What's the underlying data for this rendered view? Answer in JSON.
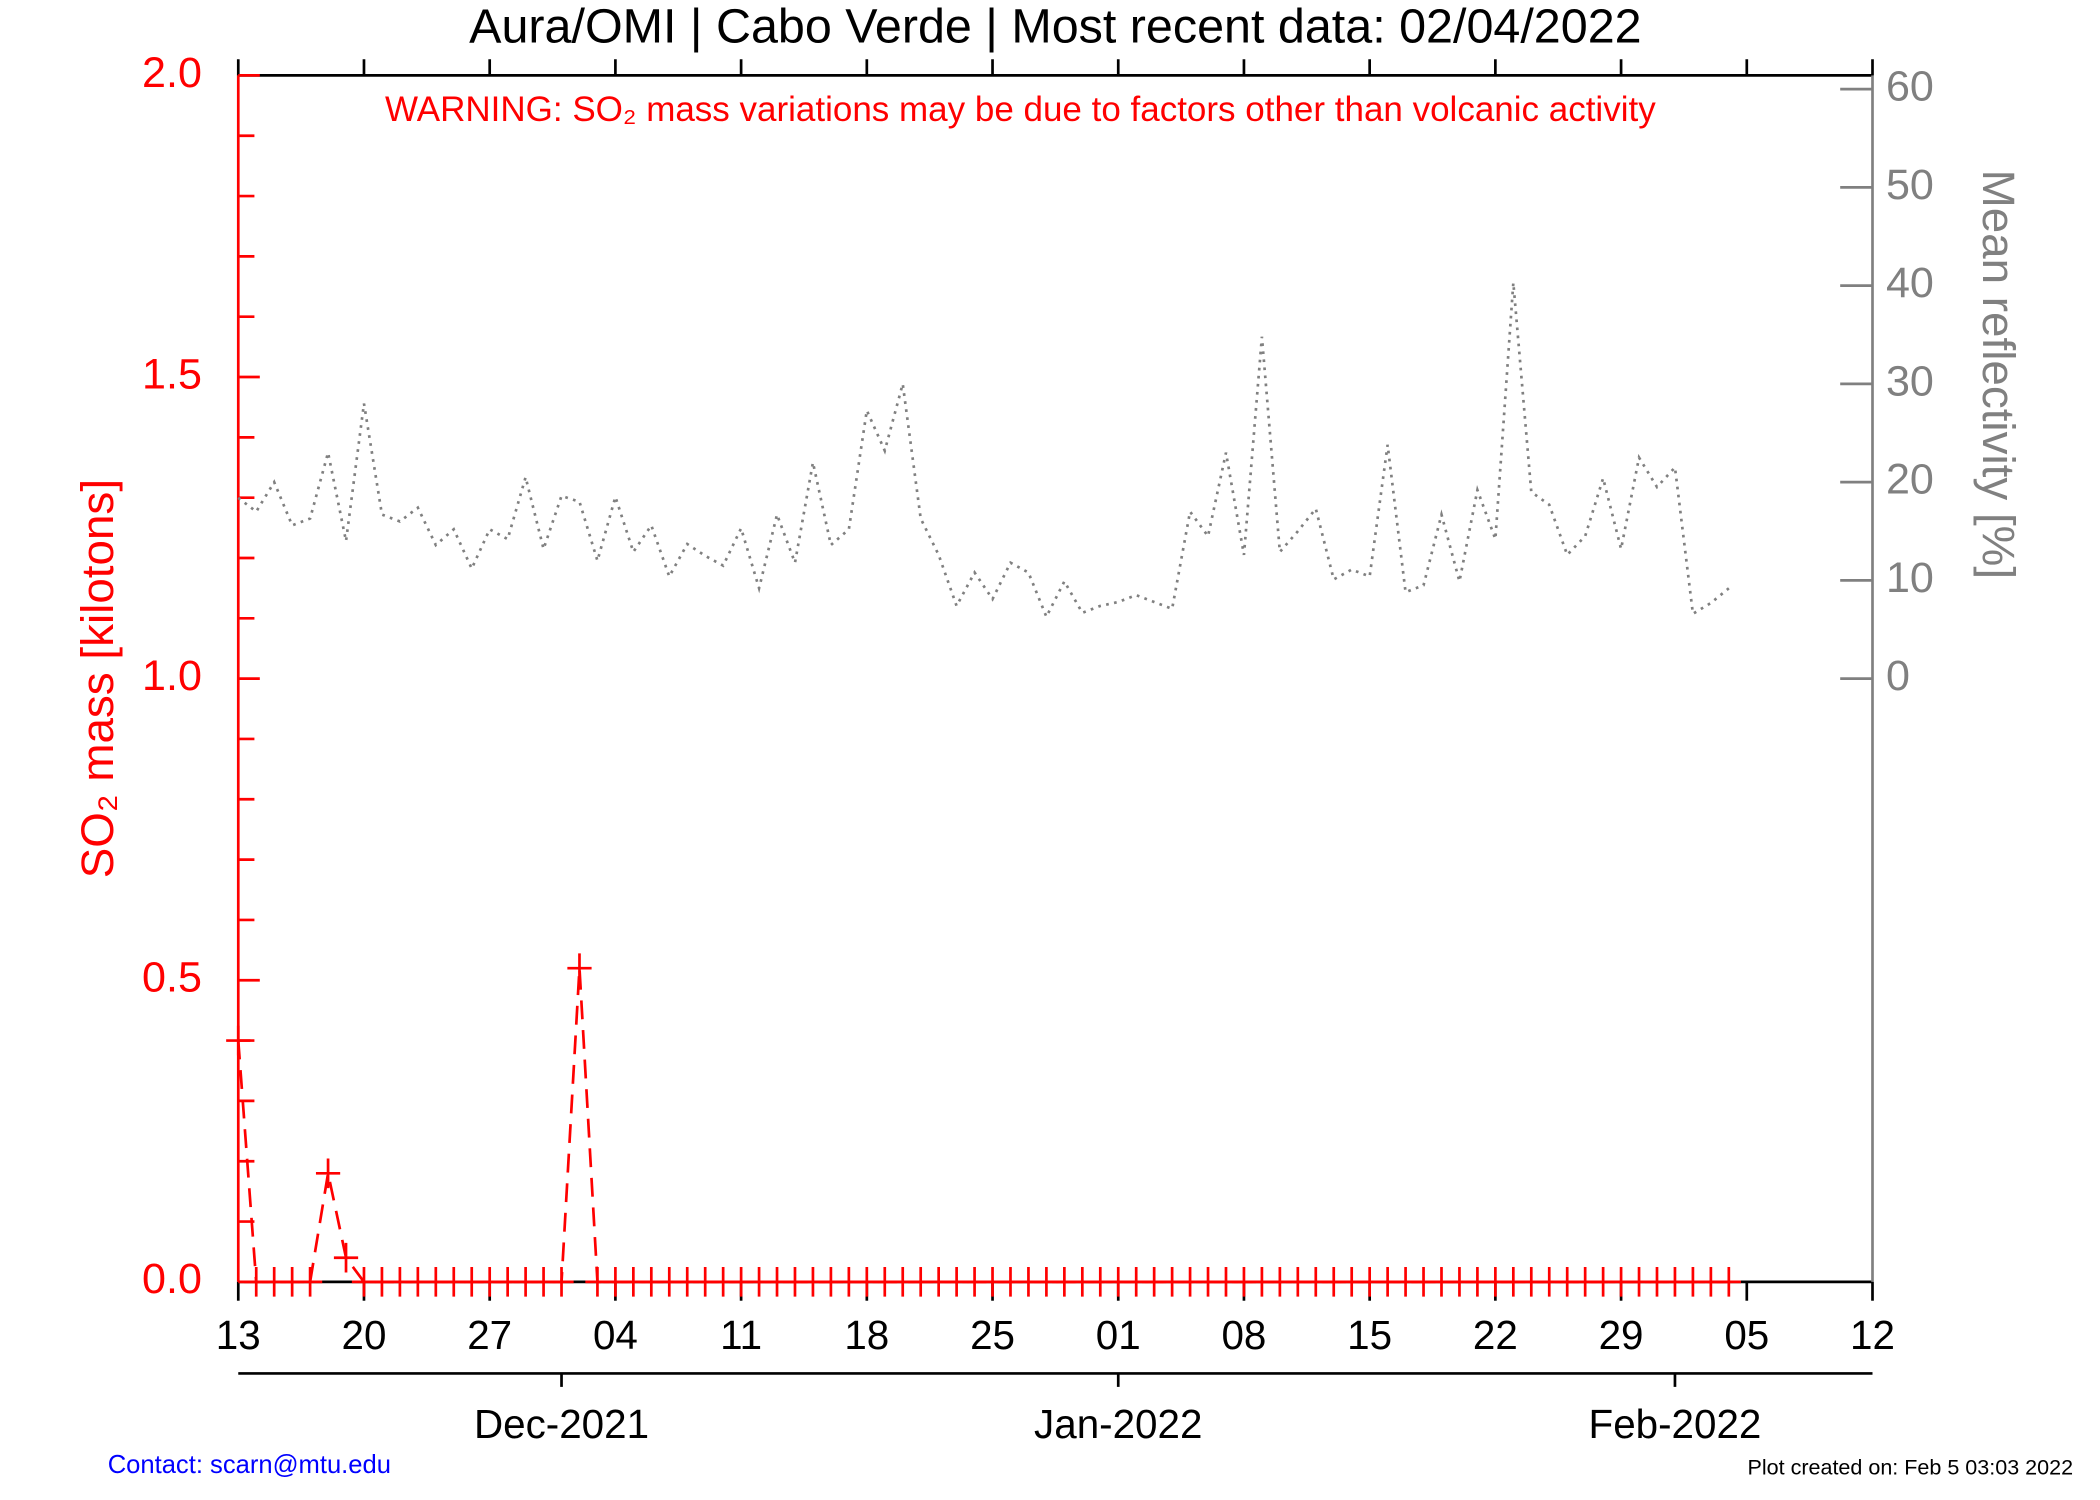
{
  "chart_data": {
    "type": "line",
    "title": "Aura/OMI | Cabo Verde | Most recent data: 02/04/2022",
    "annotation": "WARNING: SO₂ mass variations may be due to factors other than volcanic activity",
    "y_label": "SO₂ mass [kilotons]",
    "y2_label": "Mean reflectivity [%]",
    "contact": "Contact: scarn@mtu.edu",
    "created": "Plot created on: Feb  5 03:03 2022",
    "xlim": [
      "2021-11-13",
      "2022-02-12"
    ],
    "xticks": [
      {
        "value": "2021-11-13",
        "label": "13"
      },
      {
        "value": "2021-11-20",
        "label": "20"
      },
      {
        "value": "2021-11-27",
        "label": "27"
      },
      {
        "value": "2021-12-04",
        "label": "04"
      },
      {
        "value": "2021-12-11",
        "label": "11"
      },
      {
        "value": "2021-12-18",
        "label": "18"
      },
      {
        "value": "2021-12-25",
        "label": "25"
      },
      {
        "value": "2022-01-01",
        "label": "01"
      },
      {
        "value": "2022-01-08",
        "label": "08"
      },
      {
        "value": "2022-01-15",
        "label": "15"
      },
      {
        "value": "2022-01-22",
        "label": "22"
      },
      {
        "value": "2022-01-29",
        "label": "29"
      },
      {
        "value": "2022-02-05",
        "label": "05"
      },
      {
        "value": "2022-02-12",
        "label": "12"
      }
    ],
    "month_ticks": [
      {
        "value": "2021-12-01",
        "label": "Dec-2021"
      },
      {
        "value": "2022-01-01",
        "label": "Jan-2022"
      },
      {
        "value": "2022-02-01",
        "label": "Feb-2022"
      }
    ],
    "ylim": [
      0,
      2
    ],
    "yticks": [
      {
        "value": 0,
        "label": "0.0"
      },
      {
        "value": 0.5,
        "label": "0.5"
      },
      {
        "value": 1,
        "label": "1.0"
      },
      {
        "value": 1.5,
        "label": "1.5"
      },
      {
        "value": 2,
        "label": "2.0"
      }
    ],
    "yticks_minor": [
      0.1,
      0.2,
      0.3,
      0.4,
      0.6,
      0.7,
      0.8,
      0.9,
      1.1,
      1.2,
      1.3,
      1.4,
      1.6,
      1.7,
      1.8,
      1.9
    ],
    "y2lim": [
      -61.4,
      61.4
    ],
    "y2ticks": [
      0,
      10,
      20,
      30,
      40,
      50,
      60
    ],
    "x": [
      "2021-11-13",
      "2021-11-14",
      "2021-11-15",
      "2021-11-16",
      "2021-11-17",
      "2021-11-18",
      "2021-11-19",
      "2021-11-20",
      "2021-11-21",
      "2021-11-22",
      "2021-11-23",
      "2021-11-24",
      "2021-11-25",
      "2021-11-26",
      "2021-11-27",
      "2021-11-28",
      "2021-11-29",
      "2021-11-30",
      "2021-12-01",
      "2021-12-02",
      "2021-12-03",
      "2021-12-04",
      "2021-12-05",
      "2021-12-06",
      "2021-12-07",
      "2021-12-08",
      "2021-12-09",
      "2021-12-10",
      "2021-12-11",
      "2021-12-12",
      "2021-12-13",
      "2021-12-14",
      "2021-12-15",
      "2021-12-16",
      "2021-12-17",
      "2021-12-18",
      "2021-12-19",
      "2021-12-20",
      "2021-12-21",
      "2021-12-22",
      "2021-12-23",
      "2021-12-24",
      "2021-12-25",
      "2021-12-26",
      "2021-12-27",
      "2021-12-28",
      "2021-12-29",
      "2021-12-30",
      "2021-12-31",
      "2022-01-01",
      "2022-01-02",
      "2022-01-03",
      "2022-01-04",
      "2022-01-05",
      "2022-01-06",
      "2022-01-07",
      "2022-01-08",
      "2022-01-09",
      "2022-01-10",
      "2022-01-11",
      "2022-01-12",
      "2022-01-13",
      "2022-01-14",
      "2022-01-15",
      "2022-01-16",
      "2022-01-17",
      "2022-01-18",
      "2022-01-19",
      "2022-01-20",
      "2022-01-21",
      "2022-01-22",
      "2022-01-23",
      "2022-01-24",
      "2022-01-25",
      "2022-01-26",
      "2022-01-27",
      "2022-01-28",
      "2022-01-29",
      "2022-01-30",
      "2022-01-31",
      "2022-02-01",
      "2022-02-02",
      "2022-02-03",
      "2022-02-04"
    ],
    "series": [
      {
        "color": "#ff0000",
        "axis": "y",
        "line_style": "dashed",
        "marker": "+",
        "values": [
          0.4,
          0,
          0,
          0,
          0,
          0.18,
          0.04,
          0,
          0,
          0,
          0,
          0,
          0,
          0,
          0,
          0,
          0,
          0,
          0,
          0.52,
          0,
          0,
          0,
          0,
          0,
          0,
          0,
          0,
          0,
          0,
          0,
          0,
          0,
          0,
          0,
          0,
          0,
          0,
          0,
          0,
          0,
          0,
          0,
          0,
          0,
          0,
          0,
          0,
          0,
          0,
          0,
          0,
          0,
          0,
          0,
          0,
          0,
          0,
          0,
          0,
          0,
          0,
          0,
          0,
          0,
          0,
          0,
          0,
          0,
          0,
          0,
          0,
          0,
          0,
          0,
          0,
          0,
          0,
          0,
          0,
          0,
          0,
          0,
          0
        ]
      },
      {
        "color": "#808080",
        "axis": "y2",
        "line_style": "dotted",
        "values": [
          18.4,
          17,
          20,
          15.6,
          16.3,
          23,
          14,
          28,
          16.7,
          16,
          17.4,
          13.6,
          15.2,
          11.2,
          15.2,
          14.2,
          20.5,
          13.2,
          18.6,
          18,
          12,
          18.5,
          12.9,
          15.6,
          10.4,
          13.7,
          12.5,
          11.5,
          15.3,
          9.2,
          16.7,
          11.8,
          22,
          13.6,
          15.2,
          27.3,
          23.2,
          30,
          16.3,
          12.6,
          7.4,
          10.8,
          8.1,
          11.8,
          10.8,
          6.3,
          9.9,
          6.7,
          7.4,
          7.8,
          8.5,
          7.8,
          7.1,
          17,
          14.5,
          23,
          12.6,
          34.8,
          12.9,
          15,
          17.3,
          10.1,
          11.1,
          10.4,
          23.8,
          8.8,
          9.5,
          16.7,
          9.9,
          19.2,
          14.2,
          40.3,
          19,
          17.7,
          12.6,
          14.5,
          20.4,
          13.2,
          22.5,
          19.5,
          21.5,
          6.6,
          7.7,
          9.2
        ]
      }
    ]
  }
}
